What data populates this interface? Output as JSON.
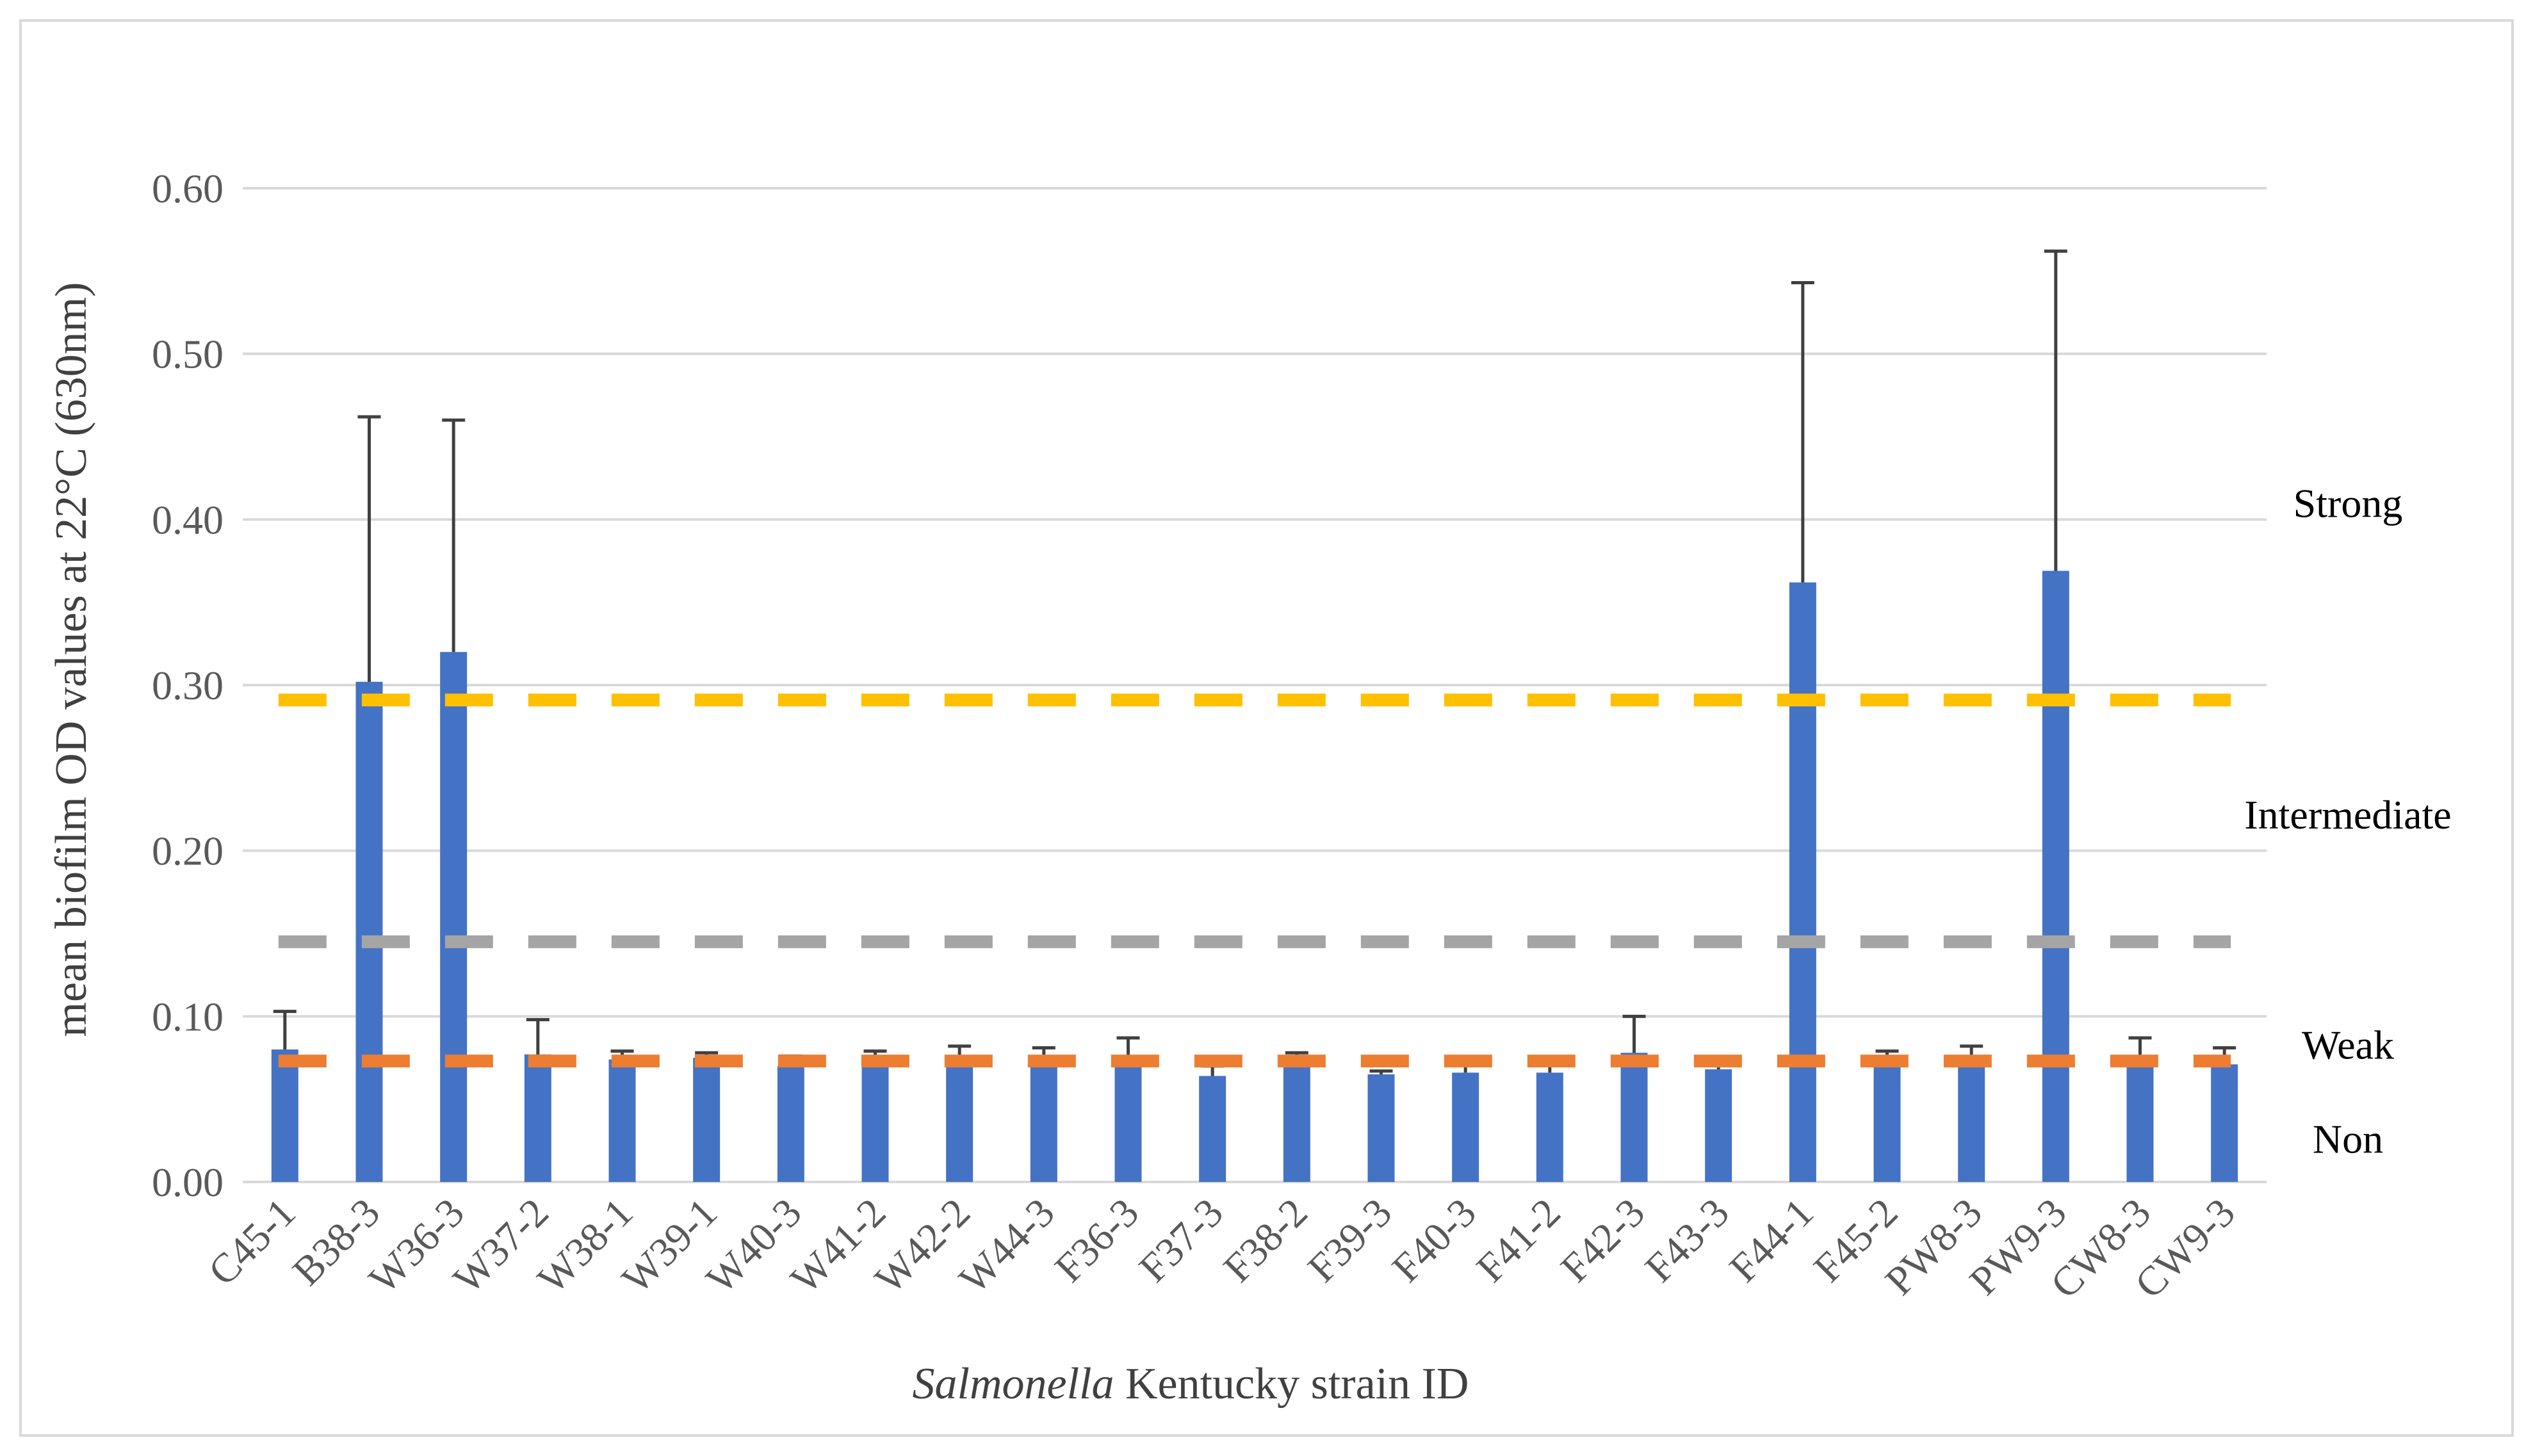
{
  "chart_data": {
    "type": "bar",
    "xlabel_italic": "Salmonella",
    "xlabel_rest": " Kentucky strain ID",
    "ylabel": "mean biofilm OD values at 22°C (630nm)",
    "ylim": [
      0,
      0.6
    ],
    "yticks": [
      0.0,
      0.1,
      0.2,
      0.3,
      0.4,
      0.5,
      0.6
    ],
    "ytick_labels": [
      "0.00",
      "0.10",
      "0.20",
      "0.30",
      "0.40",
      "0.50",
      "0.60"
    ],
    "grid": true,
    "categories": [
      "C45-1",
      "B38-3",
      "W36-3",
      "W37-2",
      "W38-1",
      "W39-1",
      "W40-3",
      "W41-2",
      "W42-2",
      "W44-3",
      "F36-3",
      "F37-3",
      "F38-2",
      "F39-3",
      "F40-3",
      "F41-2",
      "F42-3",
      "F43-3",
      "F44-1",
      "F45-2",
      "PW8-3",
      "PW9-3",
      "CW8-3",
      "CW9-3"
    ],
    "series": [
      {
        "values": [
          0.08,
          0.302,
          0.32,
          0.077,
          0.074,
          0.075,
          0.07,
          0.075,
          0.074,
          0.07,
          0.072,
          0.064,
          0.07,
          0.065,
          0.066,
          0.066,
          0.078,
          0.068,
          0.362,
          0.074,
          0.074,
          0.369,
          0.074,
          0.071
        ],
        "errors": [
          0.023,
          0.16,
          0.14,
          0.021,
          0.005,
          0.003,
          0.006,
          0.004,
          0.008,
          0.011,
          0.015,
          0.006,
          0.008,
          0.002,
          0.007,
          0.005,
          0.022,
          0.007,
          0.181,
          0.005,
          0.008,
          0.193,
          0.013,
          0.01
        ],
        "color": "#4472c4"
      }
    ],
    "thresholds": [
      {
        "value": 0.291,
        "color": "#ffc000"
      },
      {
        "value": 0.145,
        "color": "#a5a5a5"
      },
      {
        "value": 0.073,
        "color": "#ed7d31"
      }
    ],
    "zone_labels": [
      {
        "text": "Strong",
        "y": 0.41
      },
      {
        "text": "Intermediate",
        "y": 0.222
      },
      {
        "text": "Weak",
        "y": 0.083
      },
      {
        "text": "Non",
        "y": 0.026
      }
    ],
    "colors": {
      "grid": "#d9d9d9",
      "error_bar": "#404040",
      "tick_text": "#595959"
    }
  }
}
